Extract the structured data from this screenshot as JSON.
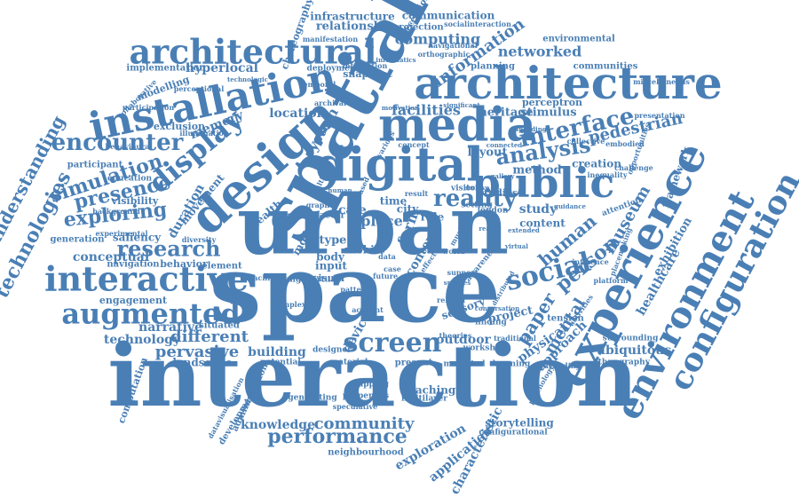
{
  "colors": {
    "word": "#4a7fb5",
    "background": "#ffffff"
  },
  "words": [
    {
      "text": "interaction"
    },
    {
      "text": "space"
    },
    {
      "text": "urban"
    },
    {
      "text": "spatial"
    },
    {
      "text": "architecture"
    },
    {
      "text": "media"
    },
    {
      "text": "digital"
    },
    {
      "text": "design"
    },
    {
      "text": "experience"
    },
    {
      "text": "environment"
    },
    {
      "text": "configuration"
    },
    {
      "text": "installation"
    },
    {
      "text": "architectural"
    },
    {
      "text": "public"
    },
    {
      "text": "interactive"
    },
    {
      "text": "augmented"
    },
    {
      "text": "display"
    },
    {
      "text": "social"
    },
    {
      "text": "encounter"
    },
    {
      "text": "screen"
    },
    {
      "text": "interface"
    },
    {
      "text": "analysis"
    },
    {
      "text": "exploring"
    },
    {
      "text": "research"
    },
    {
      "text": "simulation"
    },
    {
      "text": "presence"
    },
    {
      "text": "technologies"
    },
    {
      "text": "understanding"
    },
    {
      "text": "performance"
    },
    {
      "text": "community"
    },
    {
      "text": "pervasive"
    },
    {
      "text": "different"
    },
    {
      "text": "human"
    },
    {
      "text": "person"
    },
    {
      "text": "mental"
    },
    {
      "text": "paper"
    },
    {
      "text": "museum"
    },
    {
      "text": "pedestrian"
    },
    {
      "text": "reality"
    },
    {
      "text": "networked"
    },
    {
      "text": "information"
    },
    {
      "text": "computing"
    },
    {
      "text": "communication"
    },
    {
      "text": "relationship"
    },
    {
      "text": "infrastructure"
    },
    {
      "text": "hyperlocal"
    },
    {
      "text": "facilities"
    },
    {
      "text": "location"
    },
    {
      "text": "system"
    },
    {
      "text": "memory"
    },
    {
      "text": "conceptual"
    },
    {
      "text": "narrative"
    },
    {
      "text": "technology"
    },
    {
      "text": "building"
    },
    {
      "text": "knowledge"
    },
    {
      "text": "exploration"
    },
    {
      "text": "application"
    },
    {
      "text": "characteristic"
    },
    {
      "text": "storytelling"
    },
    {
      "text": "healthcare"
    },
    {
      "text": "exhibition"
    },
    {
      "text": "framework"
    },
    {
      "text": "ubiquitous"
    },
    {
      "text": "physical"
    },
    {
      "text": "approach"
    },
    {
      "text": "project"
    },
    {
      "text": "outdoor"
    },
    {
      "text": "teaching"
    },
    {
      "text": "heritage"
    },
    {
      "text": "stimulus"
    },
    {
      "text": "perceptron"
    },
    {
      "text": "method"
    },
    {
      "text": "layout"
    },
    {
      "text": "study"
    },
    {
      "text": "content"
    },
    {
      "text": "creation"
    },
    {
      "text": "context"
    },
    {
      "text": "sensory"
    },
    {
      "text": "form"
    },
    {
      "text": "landscape"
    },
    {
      "text": "engagement"
    },
    {
      "text": "navigation"
    },
    {
      "text": "behavior"
    },
    {
      "text": "saliency"
    },
    {
      "text": "generation"
    },
    {
      "text": "participant"
    },
    {
      "text": "education"
    },
    {
      "text": "visibility"
    },
    {
      "text": "duration"
    },
    {
      "text": "movement"
    },
    {
      "text": "exclusion"
    },
    {
      "text": "modelling"
    },
    {
      "text": "implementation"
    },
    {
      "text": "planning"
    },
    {
      "text": "communities"
    },
    {
      "text": "environmental"
    },
    {
      "text": "projection"
    },
    {
      "text": "choreography"
    },
    {
      "text": "perception"
    },
    {
      "text": "snapshot"
    },
    {
      "text": "deployment"
    },
    {
      "text": "computation"
    },
    {
      "text": "development"
    },
    {
      "text": "administration"
    },
    {
      "text": "neighbourhood"
    },
    {
      "text": "configurational"
    },
    {
      "text": "multilayer"
    },
    {
      "text": "mediated"
    },
    {
      "text": "present"
    },
    {
      "text": "workshop"
    },
    {
      "text": "learning"
    },
    {
      "text": "wayfinding"
    },
    {
      "text": "ethnography"
    },
    {
      "text": "tension"
    },
    {
      "text": "surrounding"
    },
    {
      "text": "situated"
    },
    {
      "text": "element"
    },
    {
      "text": "potential"
    },
    {
      "text": "designer"
    },
    {
      "text": "device"
    },
    {
      "text": "mobile"
    },
    {
      "text": "scale"
    },
    {
      "text": "factor"
    },
    {
      "text": "place"
    },
    {
      "text": "city"
    },
    {
      "text": "time"
    },
    {
      "text": "model"
    },
    {
      "text": "input"
    },
    {
      "text": "body"
    },
    {
      "text": "type"
    },
    {
      "text": "visual"
    },
    {
      "text": "change virtual"
    },
    {
      "text": "health"
    },
    {
      "text": "stigma"
    },
    {
      "text": "role"
    },
    {
      "text": "visitor"
    },
    {
      "text": "london"
    },
    {
      "text": "setting"
    },
    {
      "text": "studies"
    },
    {
      "text": "attention"
    },
    {
      "text": "finding"
    },
    {
      "text": "theories"
    },
    {
      "text": "traditional"
    },
    {
      "text": "material"
    },
    {
      "text": "generating"
    },
    {
      "text": "properties"
    },
    {
      "text": "mapping"
    },
    {
      "text": "speculative"
    },
    {
      "text": "archival"
    },
    {
      "text": "temporal"
    },
    {
      "text": "navigational"
    },
    {
      "text": "orthographic"
    },
    {
      "text": "socialinteraction"
    },
    {
      "text": "manifestation"
    },
    {
      "text": "integration"
    },
    {
      "text": "collaborative"
    },
    {
      "text": "participation"
    },
    {
      "text": "perceptional"
    },
    {
      "text": "illumination"
    },
    {
      "text": "behavioural"
    },
    {
      "text": "background"
    },
    {
      "text": "experimental"
    },
    {
      "text": "diversity"
    },
    {
      "text": "machine"
    },
    {
      "text": "complex"
    },
    {
      "text": "datavisualisation"
    },
    {
      "text": "inequality"
    },
    {
      "text": "challenge"
    },
    {
      "text": "opportunities"
    },
    {
      "text": "presentation"
    },
    {
      "text": "miscellaneous"
    },
    {
      "text": "embodied"
    },
    {
      "text": "collective"
    },
    {
      "text": "placemaking"
    },
    {
      "text": "influence"
    },
    {
      "text": "platform"
    },
    {
      "text": "activities"
    },
    {
      "text": "psychology"
    },
    {
      "text": "related"
    },
    {
      "text": "account"
    },
    {
      "text": "pattern"
    },
    {
      "text": "future"
    },
    {
      "text": "awareness"
    },
    {
      "text": "support"
    },
    {
      "text": "world"
    },
    {
      "text": "music"
    },
    {
      "text": "effect"
    },
    {
      "text": "data"
    },
    {
      "text": "case"
    },
    {
      "text": "result"
    },
    {
      "text": "concept"
    },
    {
      "text": "various"
    },
    {
      "text": "graph"
    },
    {
      "text": "multiple"
    },
    {
      "text": "based"
    },
    {
      "text": "human"
    },
    {
      "text": "significant"
    },
    {
      "text": "motivation"
    },
    {
      "text": "technologic"
    },
    {
      "text": "informatics"
    },
    {
      "text": "gallery"
    },
    {
      "text": "speading"
    },
    {
      "text": "virtual"
    },
    {
      "text": "distributed"
    },
    {
      "text": "connected"
    },
    {
      "text": "extended"
    },
    {
      "text": "guidance"
    },
    {
      "text": "real"
    },
    {
      "text": "archive"
    },
    {
      "text": "spheres"
    },
    {
      "text": "conversation"
    }
  ]
}
